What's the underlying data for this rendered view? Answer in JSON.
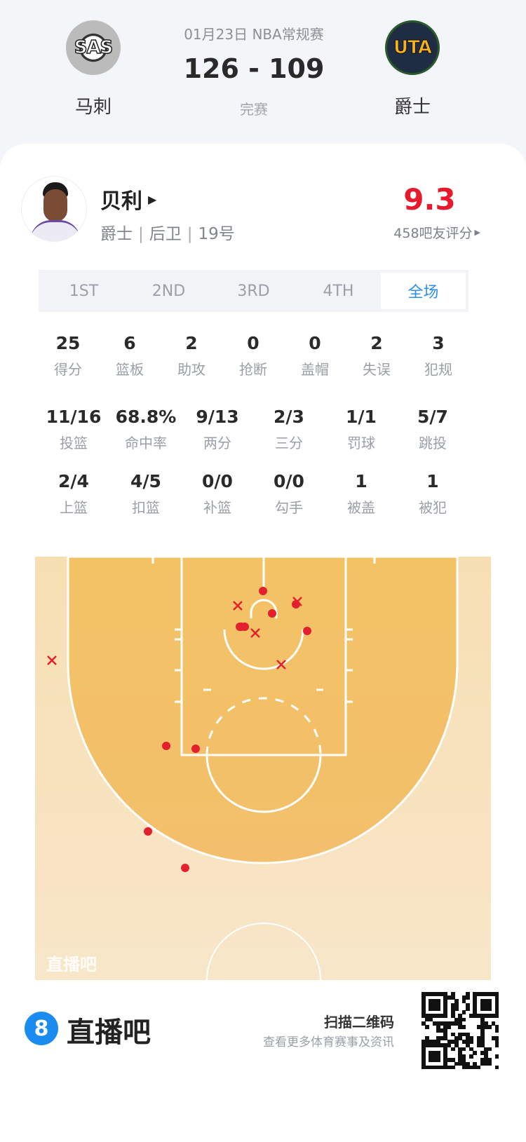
{
  "match": {
    "date_league": "01月23日 NBA常规赛",
    "score": "126 - 109",
    "status": "完赛",
    "home": {
      "abbr": "SAS",
      "name": "马刺"
    },
    "away": {
      "abbr": "UTA",
      "name": "爵士"
    }
  },
  "player": {
    "name": "贝利",
    "team": "爵士",
    "position": "后卫",
    "number": "19号",
    "rating": "9.3",
    "rating_caption": "458吧友评分",
    "rating_color": "#e8192c"
  },
  "tabs": [
    {
      "label": "1ST",
      "active": false
    },
    {
      "label": "2ND",
      "active": false
    },
    {
      "label": "3RD",
      "active": false
    },
    {
      "label": "4TH",
      "active": false
    },
    {
      "label": "全场",
      "active": true
    }
  ],
  "stats": {
    "row1": [
      {
        "value": "25",
        "label": "得分"
      },
      {
        "value": "6",
        "label": "篮板"
      },
      {
        "value": "2",
        "label": "助攻"
      },
      {
        "value": "0",
        "label": "抢断"
      },
      {
        "value": "0",
        "label": "盖帽"
      },
      {
        "value": "2",
        "label": "失误"
      },
      {
        "value": "3",
        "label": "犯规"
      }
    ],
    "row2": [
      {
        "value": "11/16",
        "label": "投篮"
      },
      {
        "value": "68.8%",
        "label": "命中率"
      },
      {
        "value": "9/13",
        "label": "两分"
      },
      {
        "value": "2/3",
        "label": "三分"
      },
      {
        "value": "1/1",
        "label": "罚球"
      },
      {
        "value": "5/7",
        "label": "跳投"
      }
    ],
    "row3": [
      {
        "value": "2/4",
        "label": "上篮"
      },
      {
        "value": "4/5",
        "label": "扣篮"
      },
      {
        "value": "0/0",
        "label": "补篮"
      },
      {
        "value": "0/0",
        "label": "勾手"
      },
      {
        "value": "1",
        "label": "被盖"
      },
      {
        "value": "1",
        "label": "被犯"
      }
    ]
  },
  "shot_chart": {
    "watermark": "直播吧",
    "colors": {
      "made": "#e3202e",
      "missed": "#e3202e",
      "paint_zone": "#f5c46c",
      "outer": "#f8e4c4"
    },
    "made": 11,
    "missed": 5
  },
  "footer": {
    "brand": "直播吧",
    "brand_icon": "8",
    "scan_title": "扫描二维码",
    "scan_sub": "查看更多体育赛事及资讯"
  }
}
